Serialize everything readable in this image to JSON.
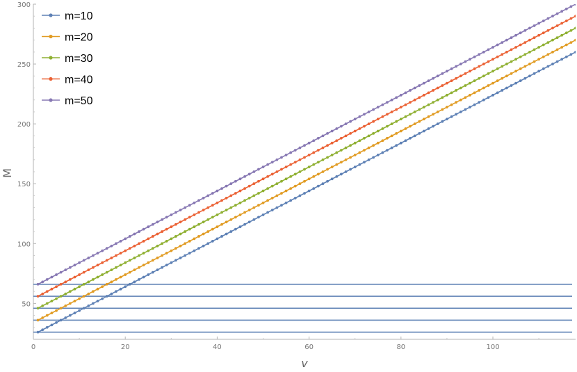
{
  "chart_data": {
    "type": "line",
    "xlabel": "v",
    "ylabel": "M",
    "xlim": [
      0,
      118
    ],
    "ylim": [
      20,
      300
    ],
    "xticks": [
      0,
      20,
      40,
      60,
      80,
      100
    ],
    "yticks": [
      50,
      100,
      150,
      200,
      250,
      300
    ],
    "grid": false,
    "legend_position": "top-left",
    "series": [
      {
        "name": "m=10",
        "color": "#5e81b5",
        "x_start": 1,
        "x_end": 118,
        "x_step": 1,
        "y_at_start": 26,
        "slope": 2,
        "markers": true
      },
      {
        "name": "m=20",
        "color": "#e19c24",
        "x_start": 1,
        "x_end": 118,
        "x_step": 1,
        "y_at_start": 36,
        "slope": 2,
        "markers": true
      },
      {
        "name": "m=30",
        "color": "#8fb032",
        "x_start": 1,
        "x_end": 118,
        "x_step": 1,
        "y_at_start": 46,
        "slope": 2,
        "markers": true
      },
      {
        "name": "m=40",
        "color": "#eb6235",
        "x_start": 1,
        "x_end": 118,
        "x_step": 1,
        "y_at_start": 56,
        "slope": 2,
        "markers": true
      },
      {
        "name": "m=50",
        "color": "#8778b3",
        "x_start": 1,
        "x_end": 118,
        "x_step": 1,
        "y_at_start": 66,
        "slope": 2,
        "markers": true
      }
    ],
    "reference_lines": [
      {
        "y": 26,
        "color": "#5e81b5"
      },
      {
        "y": 36,
        "color": "#5e81b5"
      },
      {
        "y": 46,
        "color": "#5e81b5"
      },
      {
        "y": 56,
        "color": "#5e81b5"
      },
      {
        "y": 66,
        "color": "#5e81b5"
      }
    ]
  }
}
